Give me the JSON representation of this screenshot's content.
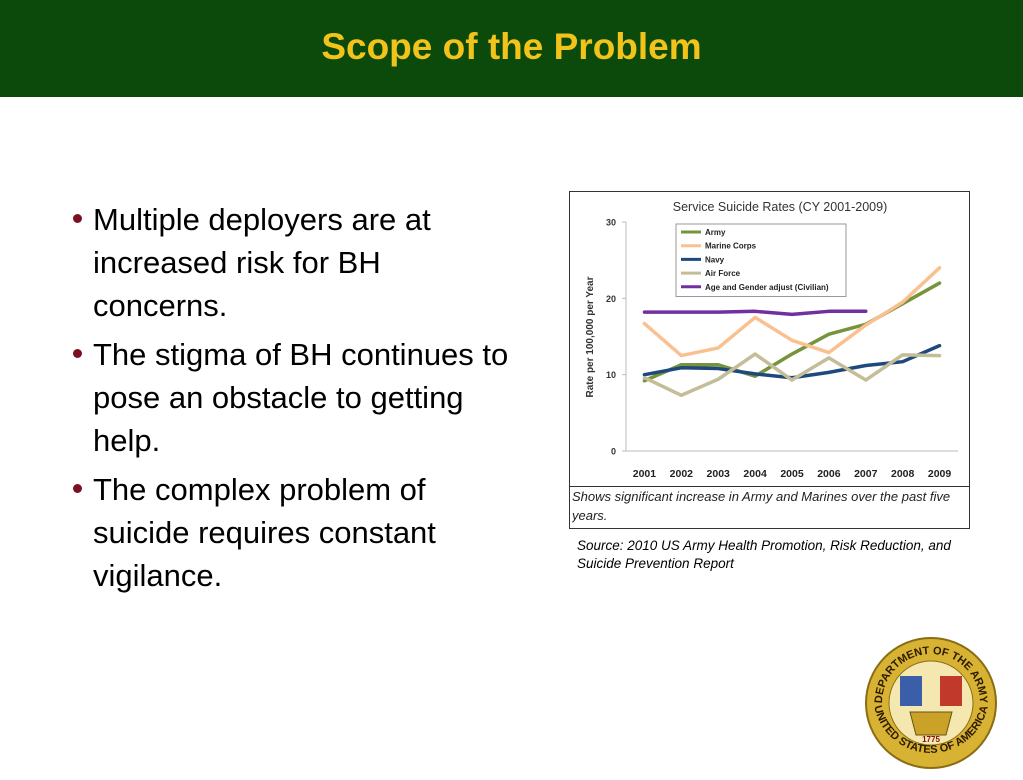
{
  "header": {
    "title": "Scope of the Problem"
  },
  "bullets": [
    "Multiple deployers are at increased risk for BH concerns.",
    "The stigma of BH continues to pose an obstacle to getting help.",
    "The complex problem of suicide requires constant vigilance."
  ],
  "chart_data": {
    "type": "line",
    "title": "Service Suicide Rates (CY 2001-2009)",
    "y_label": "Rate per 100,000 per Year",
    "categories": [
      "2001",
      "2002",
      "2003",
      "2004",
      "2005",
      "2006",
      "2007",
      "2008",
      "2009"
    ],
    "series": [
      {
        "name": "Army",
        "color": "#77933c",
        "values": [
          9.2,
          11.3,
          11.3,
          9.8,
          12.7,
          15.3,
          16.6,
          19.3,
          22
        ]
      },
      {
        "name": "Marine Corps",
        "color": "#fac090",
        "values": [
          16.7,
          12.5,
          13.5,
          17.5,
          14.5,
          12.9,
          16.5,
          19.5,
          24
        ]
      },
      {
        "name": "Navy",
        "color": "#1f497d",
        "values": [
          10,
          10.9,
          10.8,
          10.1,
          9.6,
          10.3,
          11.2,
          11.7,
          13.8
        ]
      },
      {
        "name": "Air Force",
        "color": "#c4bd97",
        "values": [
          9.6,
          7.3,
          9.4,
          12.7,
          9.3,
          12.2,
          9.3,
          12.6,
          12.5
        ]
      },
      {
        "name": "Age and Gender adjust (Civilian)",
        "color": "#7030a0",
        "values": [
          18.2,
          18.2,
          18.2,
          18.3,
          17.9,
          18.3,
          18.3,
          null,
          null
        ]
      }
    ],
    "ylim": [
      0,
      30
    ],
    "yticks": [
      0,
      10,
      20,
      30
    ],
    "grid": false,
    "legend": "upper-left",
    "caption": "Shows significant increase in Army and Marines over the past five years."
  },
  "source": "Source: 2010 US Army Health Promotion, Risk Reduction, and Suicide Prevention Report",
  "emblem": {
    "top": "DEPARTMENT OF THE ARMY",
    "bottom": "UNITED STATES OF AMERICA",
    "year": "1775"
  }
}
